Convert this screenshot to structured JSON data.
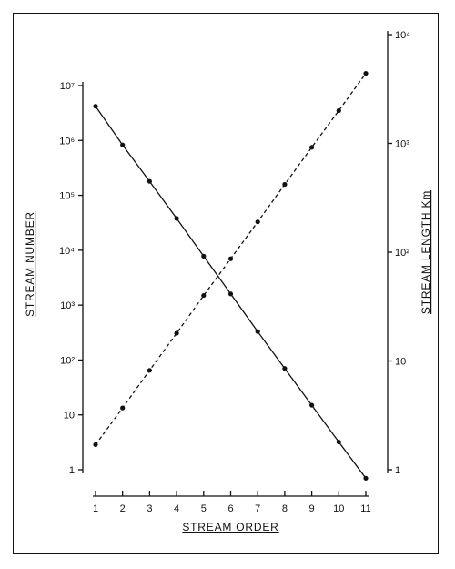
{
  "chart_data": {
    "type": "line",
    "title": "",
    "xlabel": "STREAM ORDER",
    "x": [
      1,
      2,
      3,
      4,
      5,
      6,
      7,
      8,
      9,
      10,
      11
    ],
    "xlim": [
      1,
      11
    ],
    "x_ticks": [
      "1",
      "2",
      "3",
      "4",
      "5",
      "6",
      "7",
      "8",
      "9",
      "10",
      "11"
    ],
    "y_left": {
      "label": "STREAM NUMBER",
      "scale": "log",
      "ylim": [
        1,
        10000000
      ],
      "tick_values": [
        1,
        10,
        100,
        1000,
        10000,
        100000,
        1000000,
        10000000
      ],
      "tick_labels": [
        "1",
        "10",
        "10²",
        "10³",
        "10⁴",
        "10⁵",
        "10⁶",
        "10⁷"
      ]
    },
    "y_right": {
      "label": "STREAM LENGTH Km",
      "scale": "log",
      "ylim": [
        1,
        10000
      ],
      "tick_values": [
        1,
        10,
        100,
        1000,
        10000
      ],
      "tick_labels": [
        "1",
        "10",
        "10²",
        "10³",
        "10⁴"
      ]
    },
    "grid": false,
    "legend": "none",
    "series": [
      {
        "axis": "left",
        "line_style": "solid",
        "values": [
          4200000,
          830000,
          180000,
          38000,
          7800,
          1600,
          330,
          70,
          15,
          3.2,
          0.7
        ]
      },
      {
        "axis": "right",
        "line_style": "dashed",
        "values": [
          1.7,
          3.7,
          8.2,
          18,
          40,
          87,
          190,
          420,
          920,
          2000,
          4400
        ]
      }
    ]
  }
}
